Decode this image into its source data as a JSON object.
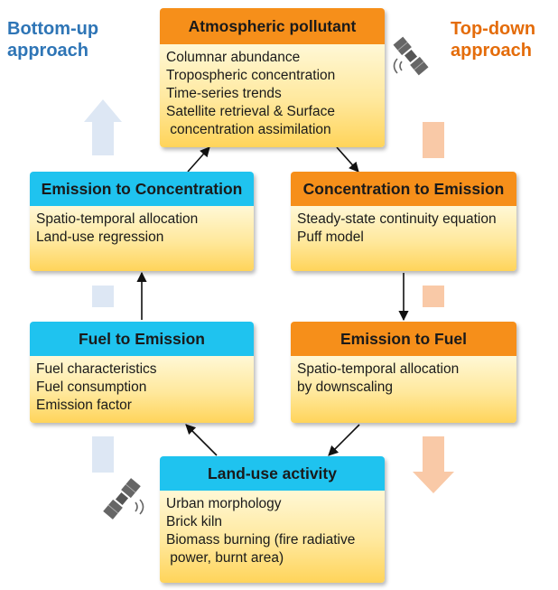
{
  "approaches": {
    "bottom_up": {
      "line1": "Bottom-up",
      "line2": "approach"
    },
    "top_down": {
      "line1": "Top-down",
      "line2": "approach"
    }
  },
  "boxes": {
    "atmospheric": {
      "title": "Atmospheric pollutant",
      "lines": [
        "Columnar abundance",
        "Tropospheric concentration",
        "Time-series trends",
        "Satellite retrieval & Surface",
        " concentration assimilation"
      ]
    },
    "emission_to_concentration": {
      "title": "Emission to Concentration",
      "lines": [
        "Spatio-temporal allocation",
        "Land-use regression"
      ]
    },
    "concentration_to_emission": {
      "title": "Concentration to Emission",
      "lines": [
        "Steady-state continuity equation",
        "Puff model"
      ]
    },
    "fuel_to_emission": {
      "title": "Fuel to Emission",
      "lines": [
        "Fuel characteristics",
        "Fuel consumption",
        "Emission factor"
      ]
    },
    "emission_to_fuel": {
      "title": "Emission to Fuel",
      "lines": [
        "Spatio-temporal allocation",
        "by downscaling"
      ]
    },
    "land_use": {
      "title": "Land-use activity",
      "lines": [
        "Urban morphology",
        "Brick kiln",
        "Biomass burning (fire radiative",
        " power, burnt area)"
      ]
    }
  },
  "icons": [
    "satellite-icon"
  ],
  "colors": {
    "bottom_up_text": "#2e75b6",
    "top_down_text": "#e46c0a",
    "blue_header": "#1fc3ef",
    "orange_header": "#f68f1a",
    "bottom_up_arrow": "#dde7f4",
    "top_down_arrow": "#f9c9a7"
  }
}
